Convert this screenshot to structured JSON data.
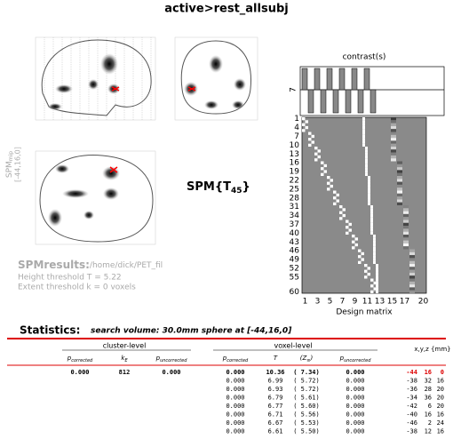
{
  "title": "active>rest_allsubj",
  "mip_label": {
    "name": "SPM",
    "sub": "mip",
    "coords": "[-44,16,0]"
  },
  "contrast": {
    "title": "contrast(s)",
    "number": "7"
  },
  "design_matrix": {
    "title": "Design matrix",
    "row_labels": [
      "1",
      "4",
      "7",
      "10",
      "13",
      "16",
      "19",
      "22",
      "25",
      "28",
      "31",
      "34",
      "37",
      "40",
      "43",
      "46",
      "49",
      "52",
      "55",
      "60"
    ],
    "col_labels": [
      "1",
      "3",
      "5",
      "7",
      "9",
      "11",
      "13",
      "15",
      "17",
      "20"
    ]
  },
  "spm_label": {
    "prefix": "SPM{T",
    "df": "45",
    "suffix": "}"
  },
  "results": {
    "label": "SPMresults:",
    "path": "/home/dick/PET_fil",
    "height": "Height threshold T = 5.22",
    "extent": "Extent threshold k = 0 voxels"
  },
  "statistics": {
    "label": "Statistics:",
    "search": "search volume: 30.0mm sphere at [-44,16,0]"
  },
  "table": {
    "cluster_header": "cluster-level",
    "voxel_header": "voxel-level",
    "xyz_header": "x,y,z {mm}",
    "cluster_cols": [
      {
        "sym": "p",
        "sub": "corrected"
      },
      {
        "sym": "k",
        "sub": "E"
      },
      {
        "sym": "p",
        "sub": "uncorrected"
      }
    ],
    "voxel_cols": [
      {
        "sym": "p",
        "sub": "corrected"
      },
      {
        "sym": "T",
        "sub": ""
      },
      {
        "sym": "(Z",
        "sub": "≡",
        "tail": ")"
      },
      {
        "sym": "p",
        "sub": "uncorrected"
      }
    ],
    "rows": [
      {
        "cluster": [
          "0.000",
          "812",
          "0.000"
        ],
        "voxel": [
          "0.000",
          "10.36",
          "( 7.34)",
          "0.000"
        ],
        "xyz": [
          "-44",
          "16",
          "0"
        ]
      },
      {
        "voxel": [
          "0.000",
          "6.99",
          "( 5.72)",
          "0.000"
        ],
        "xyz": [
          "-38",
          "32",
          "16"
        ]
      },
      {
        "voxel": [
          "0.000",
          "6.93",
          "( 5.72)",
          "0.000"
        ],
        "xyz": [
          "-36",
          "28",
          "20"
        ]
      },
      {
        "voxel": [
          "0.000",
          "6.79",
          "( 5.61)",
          "0.000"
        ],
        "xyz": [
          "-34",
          "36",
          "20"
        ]
      },
      {
        "voxel": [
          "0.000",
          "6.77",
          "( 5.60)",
          "0.000"
        ],
        "xyz": [
          "-42",
          "6",
          "20"
        ]
      },
      {
        "voxel": [
          "0.000",
          "6.71",
          "( 5.56)",
          "0.000"
        ],
        "xyz": [
          "-40",
          "16",
          "16"
        ]
      },
      {
        "voxel": [
          "0.000",
          "6.67",
          "( 5.53)",
          "0.000"
        ],
        "xyz": [
          "-46",
          "2",
          "24"
        ]
      },
      {
        "voxel": [
          "0.000",
          "6.61",
          "( 5.50)",
          "0.000"
        ],
        "xyz": [
          "-38",
          "12",
          "16"
        ]
      }
    ]
  }
}
